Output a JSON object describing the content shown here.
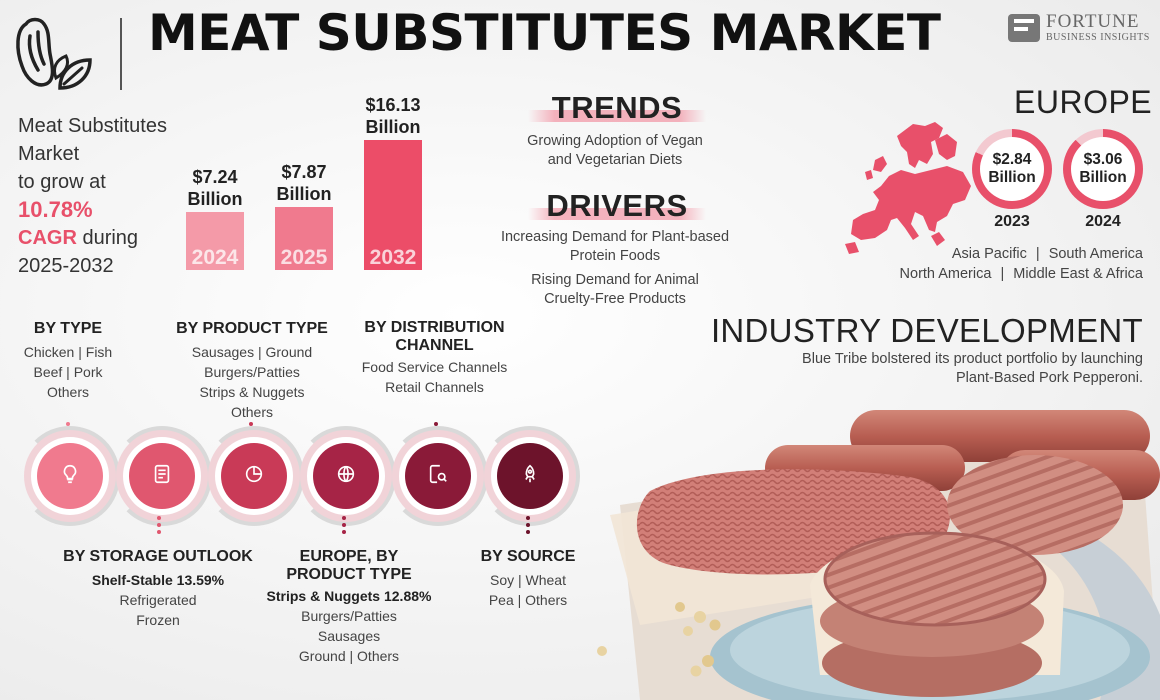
{
  "header": {
    "title": "MEAT SUBSTITUTES MARKET",
    "brand_line1": "FORTUNE",
    "brand_line2": "BUSINESS INSIGHTS"
  },
  "headline": {
    "line1": "Meat Substitutes",
    "line2": "Market",
    "line3": "to grow at",
    "cagr_value": "10.78%",
    "cagr_word": "CAGR",
    "during": " during",
    "period": "2025-2032"
  },
  "chart_data": {
    "type": "bar",
    "categories": [
      "2024",
      "2025",
      "2032"
    ],
    "values": [
      7.24,
      7.87,
      16.13
    ],
    "labels": [
      "$7.24",
      "$7.87",
      "$16.13"
    ],
    "unit_label": "Billion",
    "colors": [
      "#f49aa8",
      "#f07a8e",
      "#ec4d68"
    ]
  },
  "trends": {
    "heading": "TRENDS",
    "items": [
      "Growing Adoption of Vegan",
      "and Vegetarian Diets"
    ]
  },
  "drivers": {
    "heading": "DRIVERS",
    "item1": [
      "Increasing Demand for Plant-based",
      "Protein Foods"
    ],
    "item2": [
      "Rising Demand for Animal",
      "Cruelty-Free Products"
    ]
  },
  "europe": {
    "heading": "EUROPE",
    "rings": [
      {
        "value": "$2.84",
        "unit": "Billion",
        "year": "2023",
        "fill": 0.82
      },
      {
        "value": "$3.06",
        "unit": "Billion",
        "year": "2024",
        "fill": 0.88
      }
    ],
    "regions_line1": [
      "Asia Pacific",
      "|",
      "South America"
    ],
    "regions_line2": [
      "North America",
      "|",
      "Middle East & Africa"
    ],
    "accent": "#e8506a"
  },
  "industry": {
    "heading": "INDUSTRY DEVELOPMENT",
    "text_line1": "Blue Tribe bolstered its product portfolio by launching",
    "text_line2": "Plant-Based Pork Pepperoni."
  },
  "segments_top": [
    {
      "heading": "BY TYPE",
      "lines": [
        "Chicken  |  Fish",
        "Beef  |  Pork",
        "Others"
      ]
    },
    {
      "heading": "BY PRODUCT TYPE",
      "lines": [
        "Sausages  |  Ground",
        "Burgers/Patties",
        "Strips & Nuggets",
        "Others"
      ]
    },
    {
      "heading_line1": "BY DISTRIBUTION",
      "heading_line2": "CHANNEL",
      "lines": [
        "Food Service Channels",
        "Retail Channels"
      ]
    }
  ],
  "segments_bottom": [
    {
      "heading": "BY STORAGE OUTLOOK",
      "bold_line": "Shelf-Stable 13.59%",
      "lines": [
        "Refrigerated",
        "Frozen"
      ]
    },
    {
      "heading_line1": "EUROPE, BY",
      "heading_line2": "PRODUCT TYPE",
      "bold_line": "Strips & Nuggets 12.88%",
      "lines": [
        "Burgers/Patties",
        "Sausages",
        "Ground  |  Others"
      ]
    },
    {
      "heading": "BY SOURCE",
      "lines": [
        "Soy  |  Wheat",
        "Pea  |  Others"
      ]
    }
  ],
  "circles": [
    {
      "icon": "lightbulb-icon",
      "color": "#f07a8e"
    },
    {
      "icon": "document-icon",
      "color": "#e0576f"
    },
    {
      "icon": "pie-chart-icon",
      "color": "#c93a57"
    },
    {
      "icon": "globe-icon",
      "color": "#a62446"
    },
    {
      "icon": "report-search-icon",
      "color": "#8a1a38"
    },
    {
      "icon": "rocket-icon",
      "color": "#6d132b"
    }
  ]
}
